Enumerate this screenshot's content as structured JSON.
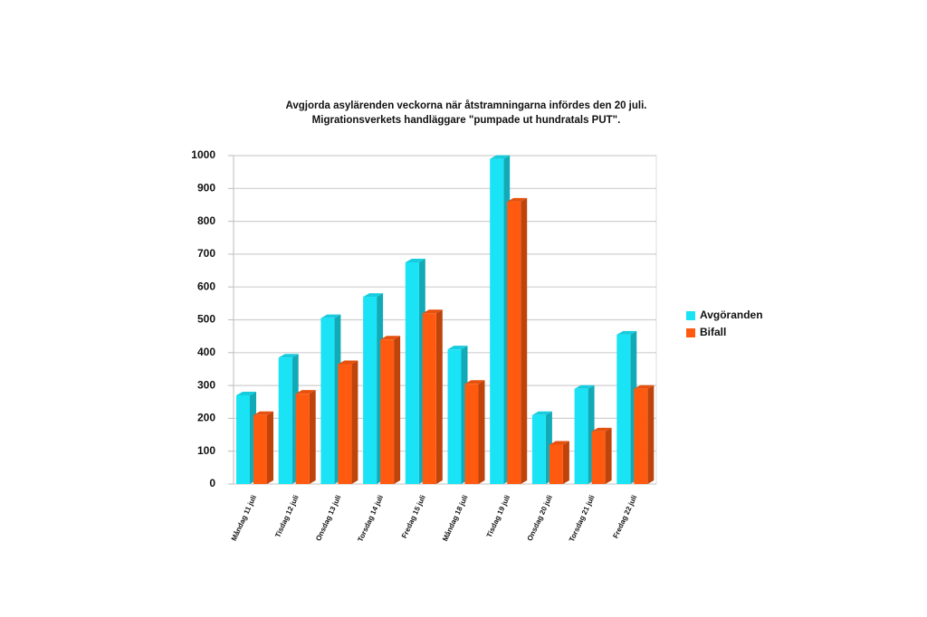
{
  "chart_data": {
    "type": "bar3d",
    "title": "Avgjorda asylärenden veckorna när åtstramningarna infördes den 20 juli.",
    "subtitle": "Migrationsverkets handläggare \"pumpade ut hundratals PUT\".",
    "categories": [
      "Måndag 11 juli",
      "Tisdag 12 juli",
      "Onsdag 13 juli",
      "Torsdag 14 juli",
      "Fredag 15 juli",
      "Måndag 18 juli",
      "Tisdag 19 juli",
      "Onsdag 20 juli",
      "Torsdag 21 juli",
      "Fredag 22 juli"
    ],
    "series": [
      {
        "name": "Avgöranden",
        "color": "#19e3f5",
        "values": [
          270,
          385,
          505,
          570,
          675,
          410,
          990,
          210,
          290,
          455
        ]
      },
      {
        "name": "Bifall",
        "color": "#ff5a10",
        "values": [
          210,
          275,
          365,
          440,
          520,
          305,
          860,
          120,
          160,
          290
        ]
      }
    ],
    "ylim": [
      0,
      1000
    ],
    "yticks": [
      0,
      100,
      200,
      300,
      400,
      500,
      600,
      700,
      800,
      900,
      1000
    ],
    "grid": true,
    "legend": "right"
  }
}
